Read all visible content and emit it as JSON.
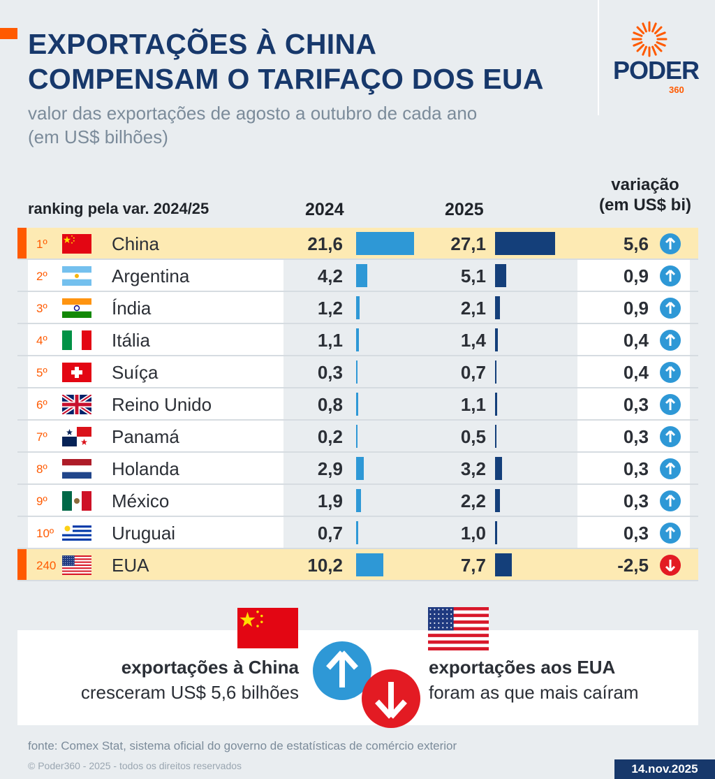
{
  "header": {
    "title_line1": "EXPORTAÇÕES À CHINA",
    "title_line2": "COMPENSAM O TARIFAÇO DOS EUA",
    "subtitle_line1": "valor das exportações de agosto a outubro de cada ano",
    "subtitle_line2": "(em US$ bilhões)",
    "logo_word": "PODER",
    "logo_num": "360"
  },
  "colors": {
    "navy": "#17386b",
    "orange": "#ff5a00",
    "bar2024": "#2e98d6",
    "bar2025": "#143f7a",
    "up": "#2e98d6",
    "down": "#e31b23",
    "highlight": "#fdeab3"
  },
  "chart_data": {
    "type": "table",
    "columns": [
      "ranking pela var. 2024/25",
      "2024",
      "2025",
      "variação (em US$ bi)"
    ],
    "rows": [
      {
        "rank": "1º",
        "country": "China",
        "flag": "china",
        "v2024": 21.6,
        "v2025": 27.1,
        "var": 5.6,
        "l2024": "21,6",
        "l2025": "27,1",
        "lvar": "5,6",
        "dir": "up",
        "highlight": true
      },
      {
        "rank": "2º",
        "country": "Argentina",
        "flag": "argentina",
        "v2024": 4.2,
        "v2025": 5.1,
        "var": 0.9,
        "l2024": "4,2",
        "l2025": "5,1",
        "lvar": "0,9",
        "dir": "up"
      },
      {
        "rank": "3º",
        "country": "Índia",
        "flag": "india",
        "v2024": 1.2,
        "v2025": 2.1,
        "var": 0.9,
        "l2024": "1,2",
        "l2025": "2,1",
        "lvar": "0,9",
        "dir": "up"
      },
      {
        "rank": "4º",
        "country": "Itália",
        "flag": "italy",
        "v2024": 1.1,
        "v2025": 1.4,
        "var": 0.4,
        "l2024": "1,1",
        "l2025": "1,4",
        "lvar": "0,4",
        "dir": "up"
      },
      {
        "rank": "5º",
        "country": "Suíça",
        "flag": "switzerland",
        "v2024": 0.3,
        "v2025": 0.7,
        "var": 0.4,
        "l2024": "0,3",
        "l2025": "0,7",
        "lvar": "0,4",
        "dir": "up"
      },
      {
        "rank": "6º",
        "country": "Reino Unido",
        "flag": "uk",
        "v2024": 0.8,
        "v2025": 1.1,
        "var": 0.3,
        "l2024": "0,8",
        "l2025": "1,1",
        "lvar": "0,3",
        "dir": "up"
      },
      {
        "rank": "7º",
        "country": "Panamá",
        "flag": "panama",
        "v2024": 0.2,
        "v2025": 0.5,
        "var": 0.3,
        "l2024": "0,2",
        "l2025": "0,5",
        "lvar": "0,3",
        "dir": "up"
      },
      {
        "rank": "8º",
        "country": "Holanda",
        "flag": "netherlands",
        "v2024": 2.9,
        "v2025": 3.2,
        "var": 0.3,
        "l2024": "2,9",
        "l2025": "3,2",
        "lvar": "0,3",
        "dir": "up"
      },
      {
        "rank": "9º",
        "country": "México",
        "flag": "mexico",
        "v2024": 1.9,
        "v2025": 2.2,
        "var": 0.3,
        "l2024": "1,9",
        "l2025": "2,2",
        "lvar": "0,3",
        "dir": "up"
      },
      {
        "rank": "10º",
        "country": "Uruguai",
        "flag": "uruguay",
        "v2024": 0.7,
        "v2025": 1.0,
        "var": 0.3,
        "l2024": "0,7",
        "l2025": "1,0",
        "lvar": "0,3",
        "dir": "up"
      },
      {
        "rank": "240",
        "country": "EUA",
        "flag": "usa",
        "v2024": 10.2,
        "v2025": 7.7,
        "var": -2.5,
        "l2024": "10,2",
        "l2025": "7,7",
        "lvar": "-2,5",
        "dir": "down",
        "highlight": true
      }
    ]
  },
  "table_header": {
    "ranking": "ranking pela var. 2024/25",
    "y2024": "2024",
    "y2025": "2025",
    "var_line1": "variação",
    "var_line2": "(em US$ bi)"
  },
  "summary": {
    "china_bold": "exportações à China",
    "china_text": "cresceram US$ 5,6 bilhões",
    "usa_bold": "exportações aos EUA",
    "usa_text": "foram as que mais caíram"
  },
  "footer": {
    "source": "fonte: Comex Stat, sistema oficial do governo de estatísticas de comércio exterior",
    "copyright": "© Poder360 - 2025 - todos os direitos reservados",
    "date": "14.nov.2025"
  }
}
